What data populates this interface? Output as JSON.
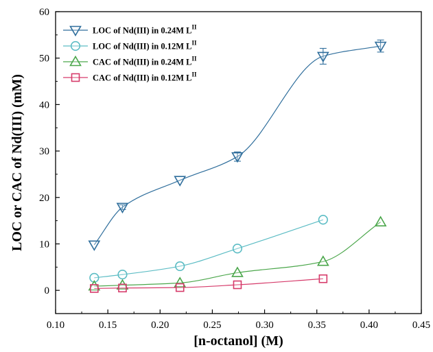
{
  "chart_data": {
    "type": "line",
    "xlabel": "[n-octanol] (M)",
    "ylabel": "LOC or CAC of Nd(III) (mM)",
    "xlim": [
      0.1,
      0.45
    ],
    "ylim": [
      -5,
      60
    ],
    "xticks": [
      "0.10",
      "0.15",
      "0.20",
      "0.25",
      "0.30",
      "0.35",
      "0.40",
      "0.45"
    ],
    "yticks": [
      "0",
      "10",
      "20",
      "30",
      "40",
      "50",
      "60"
    ],
    "legend_position": "top-left",
    "grid": false,
    "series": [
      {
        "name": "LOC of Nd(III) in 0.24M L",
        "name_sup": "II",
        "marker": "triangle-down",
        "color": "#2f6e9c",
        "x": [
          0.137,
          0.164,
          0.219,
          0.274,
          0.356,
          0.411
        ],
        "y": [
          9.8,
          17.9,
          23.7,
          28.8,
          50.4,
          52.6
        ],
        "err": [
          0,
          0.5,
          0,
          1.0,
          1.7,
          1.3
        ]
      },
      {
        "name": "LOC of Nd(III) in 0.12M L",
        "name_sup": "II",
        "marker": "circle",
        "color": "#5bbcc4",
        "x": [
          0.137,
          0.164,
          0.219,
          0.274,
          0.356
        ],
        "y": [
          2.7,
          3.4,
          5.2,
          9.0,
          15.2
        ],
        "err": [
          0,
          0,
          0,
          0,
          0
        ]
      },
      {
        "name": "CAC of Nd(III) in 0.24M L",
        "name_sup": "II",
        "marker": "triangle-up",
        "color": "#4aa64a",
        "x": [
          0.137,
          0.164,
          0.219,
          0.274,
          0.356,
          0.411
        ],
        "y": [
          0.9,
          1.1,
          1.6,
          3.8,
          6.2,
          14.7
        ],
        "err": [
          0,
          0,
          0,
          0,
          0,
          0
        ]
      },
      {
        "name": "CAC of Nd(III) in 0.12M L",
        "name_sup": "II",
        "marker": "square",
        "color": "#d63a6a",
        "x": [
          0.137,
          0.164,
          0.219,
          0.274,
          0.356
        ],
        "y": [
          0.4,
          0.5,
          0.6,
          1.2,
          2.5
        ],
        "err": [
          0,
          0,
          0,
          0,
          0
        ]
      }
    ]
  }
}
